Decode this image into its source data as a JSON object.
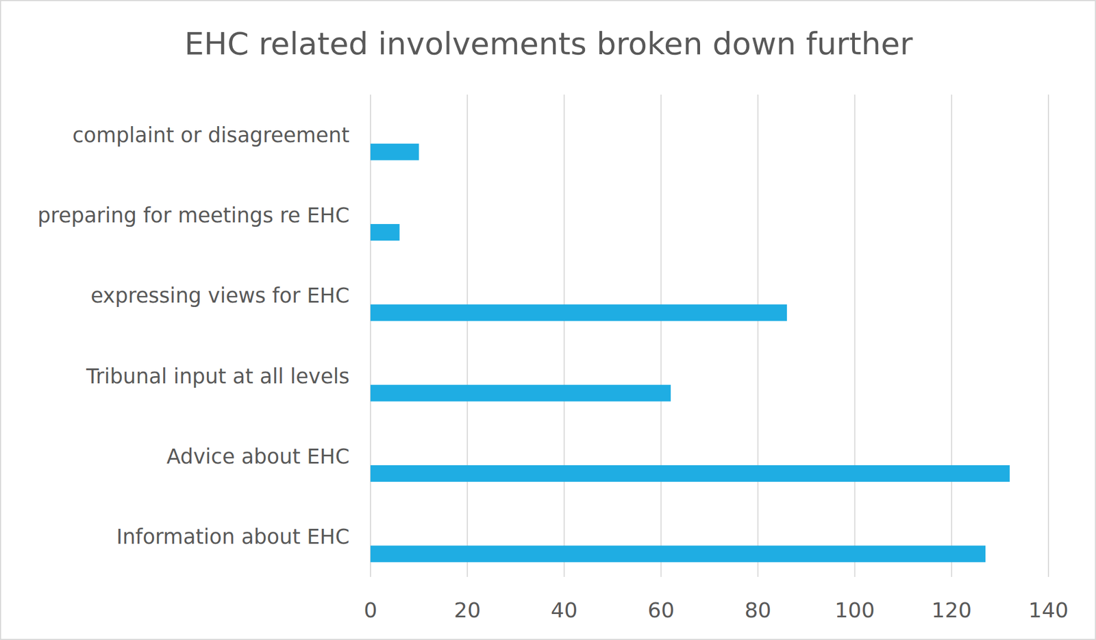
{
  "chart_data": {
    "type": "bar",
    "title": "EHC related involvements broken down further",
    "orientation": "horizontal",
    "categories": [
      "complaint or disagreement",
      "preparing for meetings re EHC",
      "expressing views for EHC",
      "Tribunal input at all levels",
      "Advice about EHC",
      "Information about EHC"
    ],
    "values": [
      10,
      6,
      86,
      62,
      132,
      127
    ],
    "color": "#1fade3",
    "xlim": [
      0,
      140
    ],
    "xticks": [
      0,
      20,
      40,
      60,
      80,
      100,
      120,
      140
    ],
    "grid": true
  }
}
